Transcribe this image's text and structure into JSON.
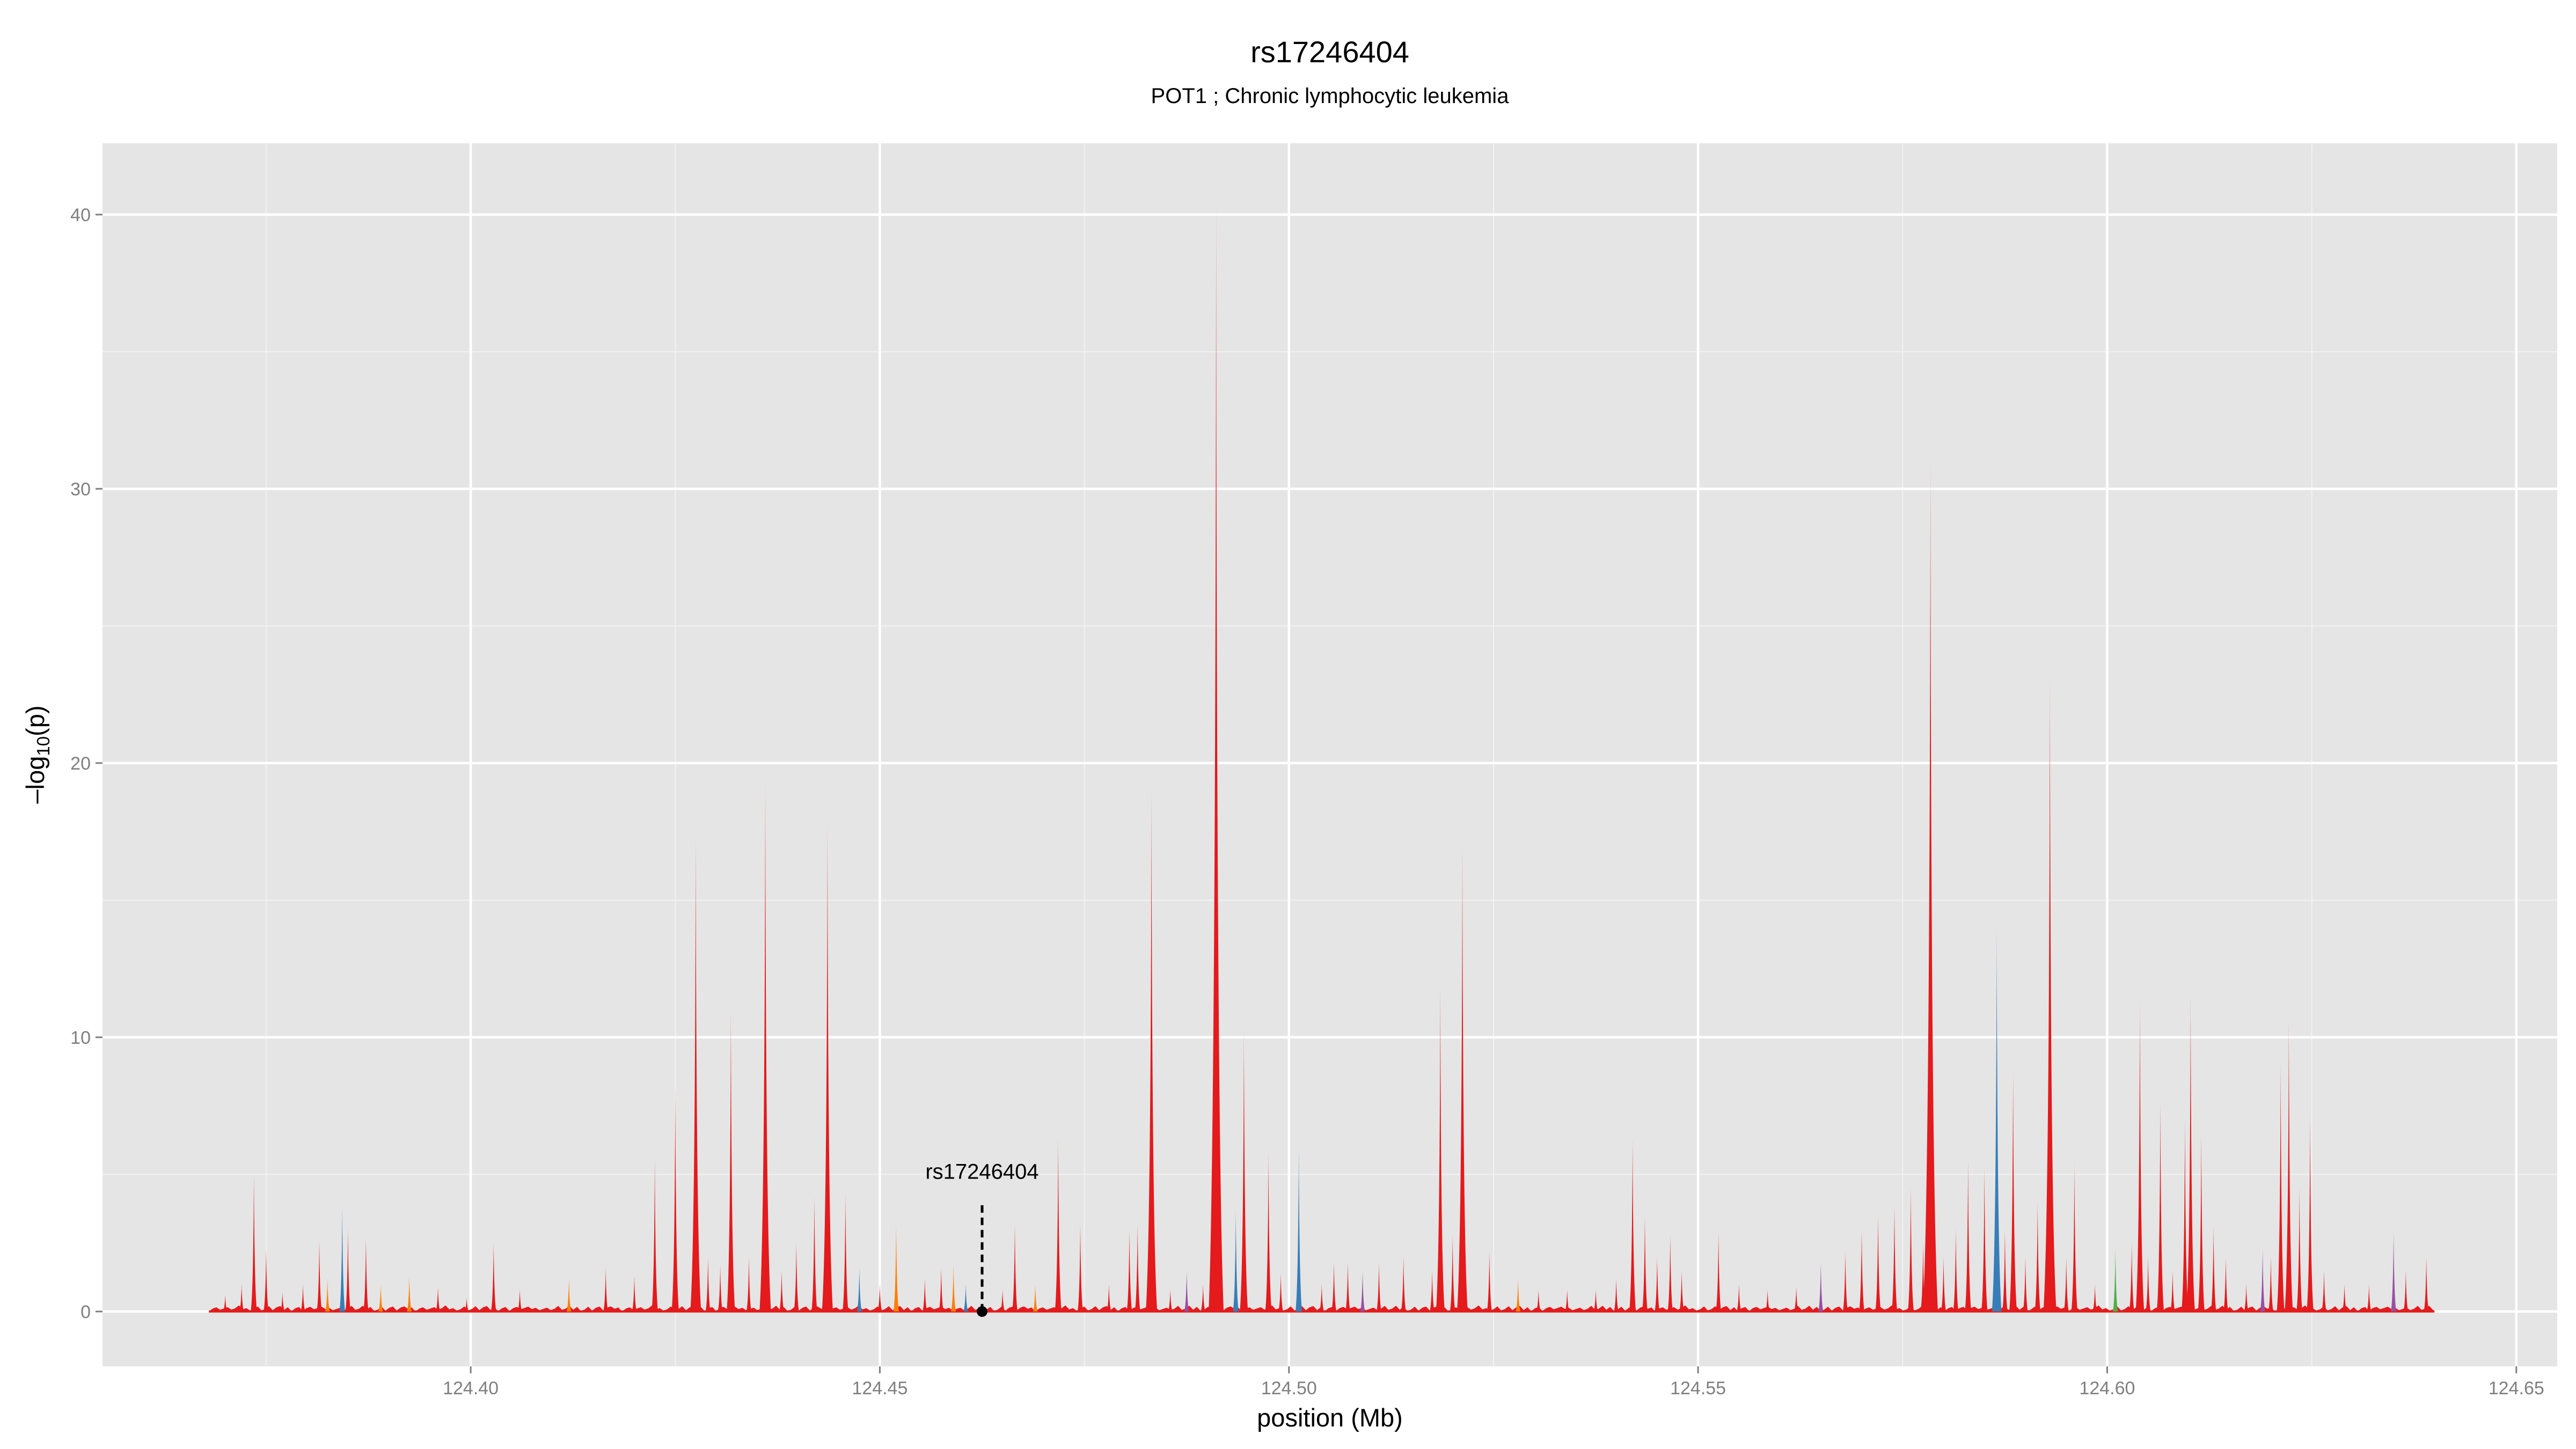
{
  "chart_data": {
    "type": "area",
    "title": "rs17246404",
    "subtitle": "POT1 ; Chronic lymphocytic leukemia",
    "xlabel": "position (Mb)",
    "ylabel": "-log10(p)",
    "xlim": [
      124.355,
      124.655
    ],
    "ylim": [
      -2,
      42.6
    ],
    "x_ticks": [
      124.4,
      124.45,
      124.5,
      124.55,
      124.6,
      124.65
    ],
    "x_tick_labels": [
      "124.40",
      "124.45",
      "124.50",
      "124.55",
      "124.60",
      "124.65"
    ],
    "y_ticks": [
      0,
      10,
      20,
      30,
      40
    ],
    "y_tick_labels": [
      "0",
      "10",
      "20",
      "30",
      "40"
    ],
    "grid": true,
    "legend": "none",
    "colors": {
      "panel": "#e5e5e5",
      "grid_major": "#ffffff",
      "grid_minor": "#f2f2f2",
      "red": "#e41a1c",
      "orange": "#ff7f00",
      "blue": "#377eb8",
      "purple": "#984ea3",
      "green": "#4daf4a"
    },
    "x_range_data": [
      124.368,
      124.64
    ],
    "annotation": {
      "label": "rs17246404",
      "x": 124.4625,
      "y": 0,
      "label_y": 5
    },
    "peaks": [
      {
        "x": 124.37,
        "y": 0.6,
        "c": "red"
      },
      {
        "x": 124.372,
        "y": 1.0,
        "c": "red"
      },
      {
        "x": 124.3735,
        "y": 5.0,
        "c": "red"
      },
      {
        "x": 124.375,
        "y": 2.3,
        "c": "red"
      },
      {
        "x": 124.377,
        "y": 0.7,
        "c": "red"
      },
      {
        "x": 124.3795,
        "y": 1.0,
        "c": "red"
      },
      {
        "x": 124.3815,
        "y": 2.6,
        "c": "red"
      },
      {
        "x": 124.3825,
        "y": 1.2,
        "c": "orange"
      },
      {
        "x": 124.3843,
        "y": 3.8,
        "c": "blue"
      },
      {
        "x": 124.385,
        "y": 3.0,
        "c": "red"
      },
      {
        "x": 124.3872,
        "y": 2.7,
        "c": "red"
      },
      {
        "x": 124.389,
        "y": 1.0,
        "c": "orange"
      },
      {
        "x": 124.3925,
        "y": 1.3,
        "c": "orange"
      },
      {
        "x": 124.396,
        "y": 0.9,
        "c": "red"
      },
      {
        "x": 124.3995,
        "y": 0.5,
        "c": "red"
      },
      {
        "x": 124.4028,
        "y": 2.5,
        "c": "red"
      },
      {
        "x": 124.406,
        "y": 0.8,
        "c": "red"
      },
      {
        "x": 124.412,
        "y": 1.2,
        "c": "orange"
      },
      {
        "x": 124.4165,
        "y": 1.6,
        "c": "red"
      },
      {
        "x": 124.42,
        "y": 1.3,
        "c": "red"
      },
      {
        "x": 124.4225,
        "y": 5.6,
        "c": "red"
      },
      {
        "x": 124.425,
        "y": 8.2,
        "c": "red"
      },
      {
        "x": 124.4275,
        "y": 17.3,
        "c": "red"
      },
      {
        "x": 124.429,
        "y": 2.0,
        "c": "red"
      },
      {
        "x": 124.4305,
        "y": 1.7,
        "c": "red"
      },
      {
        "x": 124.4318,
        "y": 11.0,
        "c": "red"
      },
      {
        "x": 124.434,
        "y": 2.0,
        "c": "red"
      },
      {
        "x": 124.436,
        "y": 19.3,
        "c": "red"
      },
      {
        "x": 124.438,
        "y": 1.5,
        "c": "red"
      },
      {
        "x": 124.4398,
        "y": 2.5,
        "c": "red"
      },
      {
        "x": 124.442,
        "y": 4.2,
        "c": "red"
      },
      {
        "x": 124.4436,
        "y": 17.8,
        "c": "red"
      },
      {
        "x": 124.4458,
        "y": 4.3,
        "c": "red"
      },
      {
        "x": 124.4475,
        "y": 1.6,
        "c": "blue"
      },
      {
        "x": 124.45,
        "y": 1.0,
        "c": "red"
      },
      {
        "x": 124.452,
        "y": 3.2,
        "c": "orange"
      },
      {
        "x": 124.4555,
        "y": 1.2,
        "c": "red"
      },
      {
        "x": 124.4575,
        "y": 1.6,
        "c": "red"
      },
      {
        "x": 124.459,
        "y": 1.7,
        "c": "orange"
      },
      {
        "x": 124.4605,
        "y": 1.0,
        "c": "blue"
      },
      {
        "x": 124.465,
        "y": 0.8,
        "c": "red"
      },
      {
        "x": 124.4665,
        "y": 3.2,
        "c": "red"
      },
      {
        "x": 124.469,
        "y": 1.0,
        "c": "orange"
      },
      {
        "x": 124.4718,
        "y": 6.3,
        "c": "red"
      },
      {
        "x": 124.4745,
        "y": 3.2,
        "c": "red"
      },
      {
        "x": 124.478,
        "y": 1.0,
        "c": "red"
      },
      {
        "x": 124.4805,
        "y": 3.0,
        "c": "red"
      },
      {
        "x": 124.4815,
        "y": 3.2,
        "c": "red"
      },
      {
        "x": 124.4832,
        "y": 19.0,
        "c": "red"
      },
      {
        "x": 124.4855,
        "y": 0.8,
        "c": "red"
      },
      {
        "x": 124.4875,
        "y": 1.5,
        "c": "purple"
      },
      {
        "x": 124.4895,
        "y": 1.0,
        "c": "red"
      },
      {
        "x": 124.4911,
        "y": 40.5,
        "c": "red"
      },
      {
        "x": 124.4935,
        "y": 3.7,
        "c": "blue"
      },
      {
        "x": 124.4945,
        "y": 10.2,
        "c": "red"
      },
      {
        "x": 124.4975,
        "y": 5.8,
        "c": "red"
      },
      {
        "x": 124.499,
        "y": 1.4,
        "c": "red"
      },
      {
        "x": 124.5012,
        "y": 6.0,
        "c": "blue"
      },
      {
        "x": 124.504,
        "y": 1.0,
        "c": "red"
      },
      {
        "x": 124.5055,
        "y": 1.8,
        "c": "red"
      },
      {
        "x": 124.5072,
        "y": 1.8,
        "c": "red"
      },
      {
        "x": 124.509,
        "y": 1.5,
        "c": "purple"
      },
      {
        "x": 124.511,
        "y": 1.8,
        "c": "red"
      },
      {
        "x": 124.514,
        "y": 2.0,
        "c": "red"
      },
      {
        "x": 124.5175,
        "y": 1.5,
        "c": "red"
      },
      {
        "x": 124.5185,
        "y": 11.8,
        "c": "red"
      },
      {
        "x": 124.52,
        "y": 2.8,
        "c": "red"
      },
      {
        "x": 124.5212,
        "y": 17.0,
        "c": "red"
      },
      {
        "x": 124.5245,
        "y": 2.2,
        "c": "red"
      },
      {
        "x": 124.528,
        "y": 1.2,
        "c": "orange"
      },
      {
        "x": 124.5305,
        "y": 0.8,
        "c": "red"
      },
      {
        "x": 124.534,
        "y": 0.8,
        "c": "red"
      },
      {
        "x": 124.5375,
        "y": 0.8,
        "c": "red"
      },
      {
        "x": 124.54,
        "y": 1.2,
        "c": "red"
      },
      {
        "x": 124.542,
        "y": 6.3,
        "c": "red"
      },
      {
        "x": 124.5435,
        "y": 3.5,
        "c": "red"
      },
      {
        "x": 124.545,
        "y": 2.0,
        "c": "red"
      },
      {
        "x": 124.5466,
        "y": 2.8,
        "c": "red"
      },
      {
        "x": 124.548,
        "y": 1.5,
        "c": "red"
      },
      {
        "x": 124.5525,
        "y": 2.9,
        "c": "red"
      },
      {
        "x": 124.555,
        "y": 1.0,
        "c": "red"
      },
      {
        "x": 124.5585,
        "y": 0.8,
        "c": "red"
      },
      {
        "x": 124.562,
        "y": 0.9,
        "c": "red"
      },
      {
        "x": 124.565,
        "y": 1.8,
        "c": "purple"
      },
      {
        "x": 124.568,
        "y": 2.2,
        "c": "red"
      },
      {
        "x": 124.57,
        "y": 3.0,
        "c": "red"
      },
      {
        "x": 124.572,
        "y": 3.5,
        "c": "red"
      },
      {
        "x": 124.574,
        "y": 3.9,
        "c": "red"
      },
      {
        "x": 124.576,
        "y": 4.5,
        "c": "red"
      },
      {
        "x": 124.5775,
        "y": 2.5,
        "c": "red"
      },
      {
        "x": 124.5784,
        "y": 31.2,
        "c": "red"
      },
      {
        "x": 124.58,
        "y": 2.0,
        "c": "red"
      },
      {
        "x": 124.5815,
        "y": 3.0,
        "c": "red"
      },
      {
        "x": 124.583,
        "y": 5.5,
        "c": "red"
      },
      {
        "x": 124.585,
        "y": 5.3,
        "c": "red"
      },
      {
        "x": 124.5865,
        "y": 14.0,
        "c": "blue"
      },
      {
        "x": 124.5875,
        "y": 3.0,
        "c": "red"
      },
      {
        "x": 124.5885,
        "y": 8.8,
        "c": "red"
      },
      {
        "x": 124.59,
        "y": 2.0,
        "c": "red"
      },
      {
        "x": 124.5915,
        "y": 4.0,
        "c": "red"
      },
      {
        "x": 124.593,
        "y": 23.2,
        "c": "red"
      },
      {
        "x": 124.595,
        "y": 2.0,
        "c": "red"
      },
      {
        "x": 124.596,
        "y": 5.4,
        "c": "red"
      },
      {
        "x": 124.5985,
        "y": 1.0,
        "c": "red"
      },
      {
        "x": 124.601,
        "y": 2.3,
        "c": "green"
      },
      {
        "x": 124.603,
        "y": 2.5,
        "c": "red"
      },
      {
        "x": 124.604,
        "y": 11.3,
        "c": "red"
      },
      {
        "x": 124.605,
        "y": 2.0,
        "c": "red"
      },
      {
        "x": 124.6065,
        "y": 7.7,
        "c": "red"
      },
      {
        "x": 124.608,
        "y": 1.5,
        "c": "red"
      },
      {
        "x": 124.6095,
        "y": 7.0,
        "c": "red"
      },
      {
        "x": 124.6102,
        "y": 11.5,
        "c": "red"
      },
      {
        "x": 124.6115,
        "y": 6.5,
        "c": "red"
      },
      {
        "x": 124.613,
        "y": 3.1,
        "c": "red"
      },
      {
        "x": 124.6145,
        "y": 2.0,
        "c": "red"
      },
      {
        "x": 124.617,
        "y": 1.0,
        "c": "red"
      },
      {
        "x": 124.619,
        "y": 2.3,
        "c": "purple"
      },
      {
        "x": 124.62,
        "y": 2.0,
        "c": "red"
      },
      {
        "x": 124.6212,
        "y": 9.1,
        "c": "red"
      },
      {
        "x": 124.6222,
        "y": 10.6,
        "c": "red"
      },
      {
        "x": 124.6235,
        "y": 4.5,
        "c": "red"
      },
      {
        "x": 124.6248,
        "y": 7.1,
        "c": "red"
      },
      {
        "x": 124.6265,
        "y": 1.5,
        "c": "red"
      },
      {
        "x": 124.629,
        "y": 1.0,
        "c": "red"
      },
      {
        "x": 124.632,
        "y": 1.0,
        "c": "red"
      },
      {
        "x": 124.635,
        "y": 2.9,
        "c": "purple"
      },
      {
        "x": 124.6365,
        "y": 1.5,
        "c": "red"
      },
      {
        "x": 124.639,
        "y": 2.0,
        "c": "red"
      }
    ]
  }
}
